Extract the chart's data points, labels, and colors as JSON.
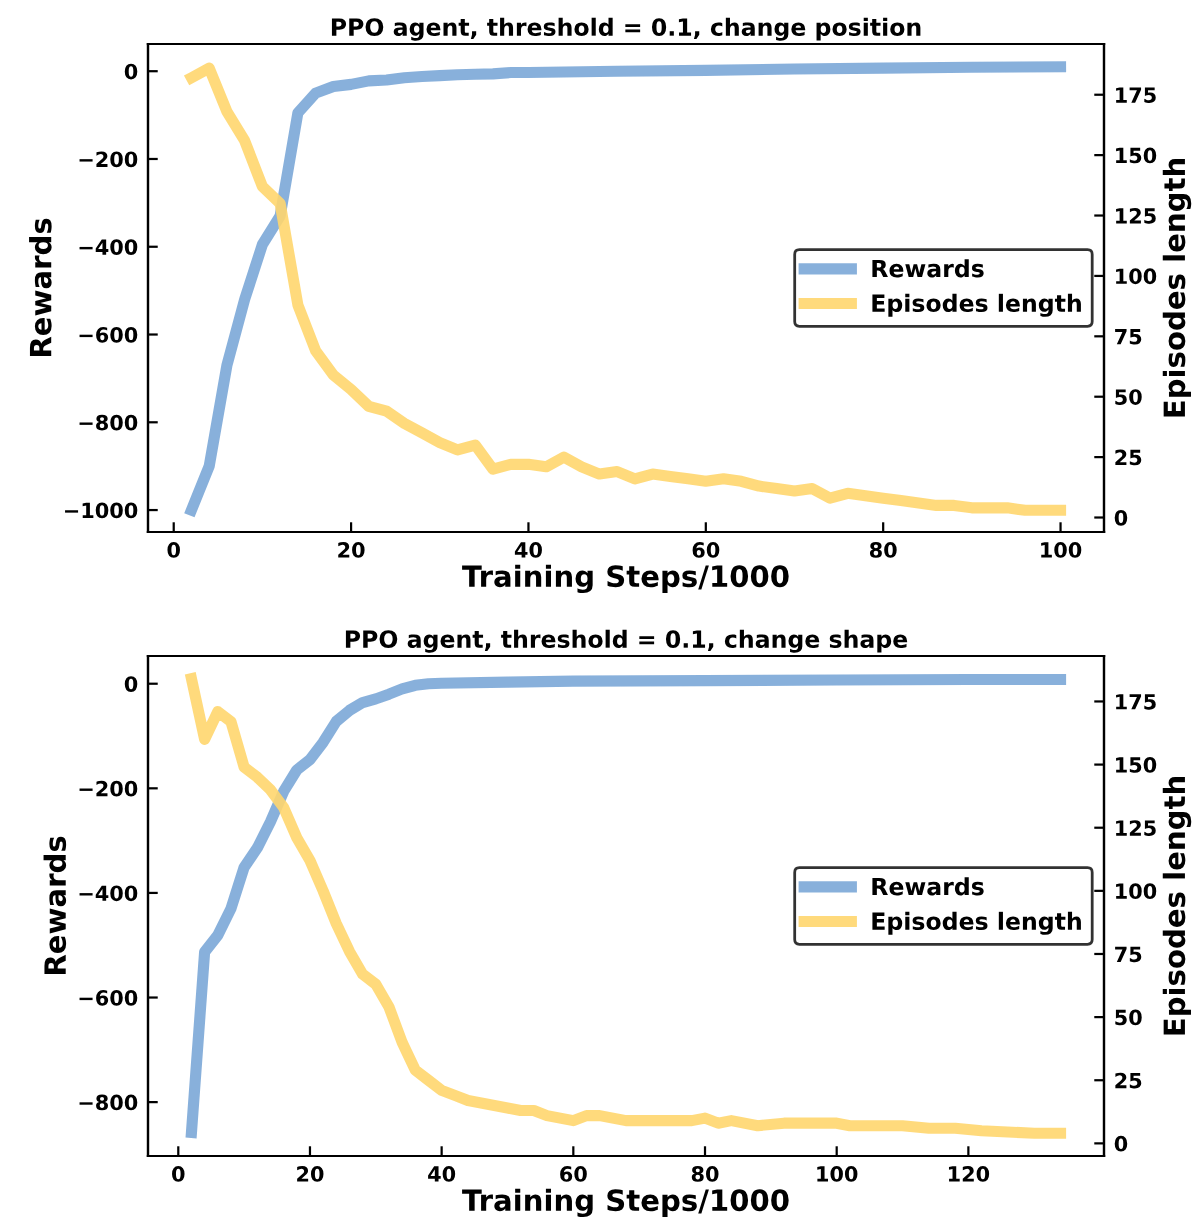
{
  "chart_data": [
    {
      "type": "line",
      "title": "PPO agent, threshold = 0.1, change position",
      "xlabel": "Training Steps/1000",
      "ylabel": "Rewards",
      "y2label": "Episodes length",
      "xlim": [
        -2.9,
        104.9
      ],
      "xticks": [
        0,
        20,
        40,
        60,
        80,
        100
      ],
      "ylim": [
        -1050,
        62
      ],
      "yticks": [
        -1000,
        -800,
        -600,
        -400,
        -200,
        0
      ],
      "y2lim": [
        -6,
        196
      ],
      "y2ticks": [
        0,
        25,
        50,
        75,
        100,
        125,
        150,
        175
      ],
      "legend": "right",
      "grid": false,
      "marker": "none",
      "line_style": "solid",
      "series": [
        {
          "name": "Rewards",
          "color": "#7ba7d7",
          "x": [
            2,
            4,
            6,
            8,
            10,
            12,
            14,
            16,
            18,
            20,
            22,
            24,
            26,
            28,
            30,
            32,
            34,
            36,
            38,
            40,
            50,
            60,
            70,
            80,
            90,
            100
          ],
          "values": [
            -1000,
            -900,
            -670,
            -520,
            -395,
            -330,
            -95,
            -50,
            -35,
            -30,
            -22,
            -20,
            -15,
            -12,
            -10,
            -8,
            -7,
            -6,
            -3,
            -3,
            0,
            2,
            5,
            7,
            9,
            10
          ]
        },
        {
          "name": "Episodes length",
          "color": "#ffd66e",
          "axis": "y2",
          "x": [
            2,
            4,
            6,
            8,
            10,
            12,
            14,
            16,
            18,
            20,
            22,
            24,
            26,
            28,
            30,
            32,
            34,
            36,
            38,
            40,
            42,
            44,
            46,
            48,
            50,
            52,
            54,
            56,
            58,
            60,
            62,
            64,
            66,
            68,
            70,
            72,
            74,
            76,
            78,
            80,
            82,
            84,
            86,
            88,
            90,
            92,
            94,
            96,
            98,
            100
          ],
          "values": [
            182,
            186,
            168,
            156,
            137,
            130,
            88,
            69,
            59,
            53,
            46,
            44,
            39,
            35,
            31,
            28,
            30,
            20,
            22,
            22,
            21,
            25,
            21,
            18,
            19,
            16,
            18,
            17,
            16,
            15,
            16,
            15,
            13,
            12,
            11,
            12,
            8,
            10,
            9,
            8,
            7,
            6,
            5,
            5,
            4,
            4,
            4,
            3,
            3,
            3
          ]
        }
      ]
    },
    {
      "type": "line",
      "title": "PPO agent, threshold = 0.1, change shape",
      "xlabel": "Training Steps/1000",
      "ylabel": "Rewards",
      "y2label": "Episodes length",
      "xlim": [
        -4.6,
        140.6
      ],
      "xticks": [
        0,
        20,
        40,
        60,
        80,
        100,
        120
      ],
      "ylim": [
        -903,
        53
      ],
      "yticks": [
        -800,
        -600,
        -400,
        -200,
        0
      ],
      "y2lim": [
        -5,
        193
      ],
      "y2ticks": [
        0,
        25,
        50,
        75,
        100,
        125,
        150,
        175
      ],
      "legend": "right",
      "grid": false,
      "marker": "none",
      "line_style": "solid",
      "series": [
        {
          "name": "Rewards",
          "color": "#7ba7d7",
          "x": [
            2,
            4,
            6,
            8,
            10,
            12,
            14,
            16,
            18,
            20,
            22,
            24,
            26,
            28,
            30,
            32,
            34,
            36,
            38,
            40,
            50,
            60,
            80,
            100,
            120,
            134
          ],
          "values": [
            -858,
            -513,
            -481,
            -430,
            -351,
            -314,
            -264,
            -206,
            -165,
            -145,
            -112,
            -72,
            -51,
            -36,
            -29,
            -20,
            -10,
            -3,
            0,
            1,
            3,
            5,
            6,
            7,
            8,
            8
          ]
        },
        {
          "name": "Episodes length",
          "color": "#ffd66e",
          "axis": "y2",
          "x": [
            2,
            4,
            6,
            8,
            10,
            12,
            14,
            16,
            18,
            20,
            22,
            24,
            26,
            28,
            30,
            32,
            34,
            36,
            38,
            40,
            42,
            44,
            46,
            48,
            50,
            52,
            54,
            56,
            58,
            60,
            62,
            64,
            66,
            68,
            70,
            74,
            78,
            80,
            82,
            84,
            88,
            92,
            100,
            102,
            110,
            114,
            118,
            122,
            130,
            134
          ],
          "values": [
            184,
            160,
            171,
            167,
            149,
            145,
            140,
            133,
            121,
            112,
            100,
            87,
            76,
            67,
            63,
            54,
            40,
            29,
            25,
            21,
            19,
            17,
            16,
            15,
            14,
            13,
            13,
            11,
            10,
            9,
            11,
            11,
            10,
            9,
            9,
            9,
            9,
            10,
            8,
            9,
            7,
            8,
            8,
            7,
            7,
            6,
            6,
            5,
            4,
            4
          ]
        }
      ]
    }
  ]
}
